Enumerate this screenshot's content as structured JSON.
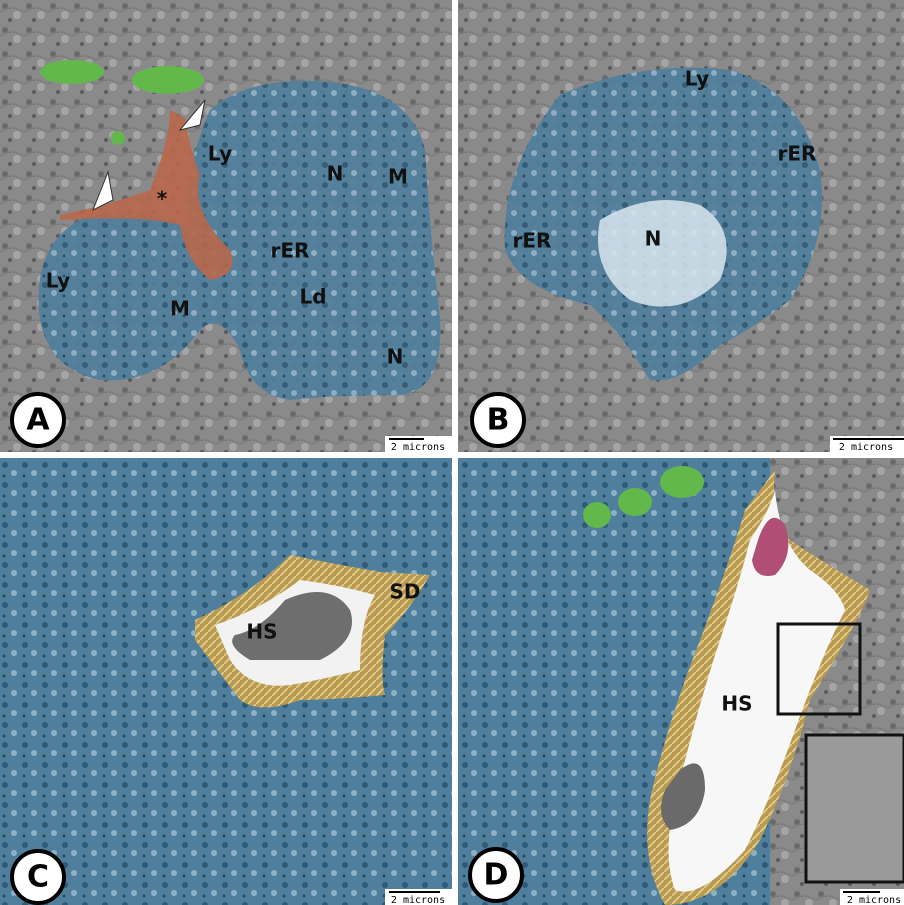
{
  "panels": [
    {
      "letter": "A",
      "scale": "2 microns",
      "labels": [
        "Ly",
        "N",
        "M",
        "*",
        "rER",
        "Ly",
        "M",
        "Ld",
        "N"
      ]
    },
    {
      "letter": "B",
      "scale": "2 microns",
      "labels": [
        "Ly",
        "rER",
        "rER",
        "N"
      ]
    },
    {
      "letter": "C",
      "scale": "2 microns",
      "labels": [
        "HS",
        "SD"
      ]
    },
    {
      "letter": "D",
      "scale": "2 microns",
      "labels": [
        "HS"
      ]
    }
  ]
}
